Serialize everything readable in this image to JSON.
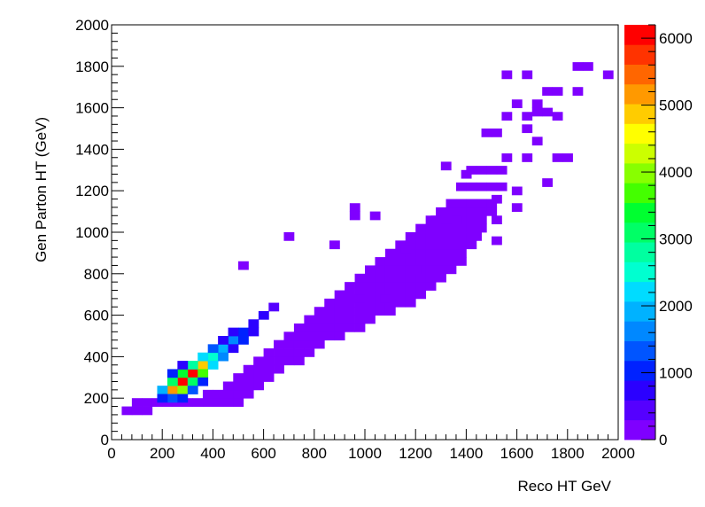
{
  "chart_data": {
    "type": "heatmap",
    "title": "",
    "xlabel": "Reco HT GeV",
    "ylabel": "Gen Parton HT (GeV)",
    "xlim": [
      0,
      2000
    ],
    "ylim": [
      0,
      2000
    ],
    "bin_width": 40,
    "x_ticks": [
      "0",
      "200",
      "400",
      "600",
      "800",
      "1000",
      "1200",
      "1400",
      "1600",
      "1800",
      "2000"
    ],
    "y_ticks": [
      "0",
      "200",
      "400",
      "600",
      "800",
      "1000",
      "1200",
      "1400",
      "1600",
      "1800",
      "2000"
    ],
    "z_range": [
      0,
      6200
    ],
    "z_ticks": [
      "0",
      "1000",
      "2000",
      "3000",
      "4000",
      "5000",
      "6000"
    ],
    "palette": [
      "#7f00ff",
      "#5500ff",
      "#2b00ff",
      "#0022ff",
      "#0055ff",
      "#0088ff",
      "#00b2ff",
      "#00dcff",
      "#00ffd0",
      "#00ffa0",
      "#00ff66",
      "#00ff30",
      "#44ff00",
      "#88ff00",
      "#ccff00",
      "#ffff00",
      "#ffcc00",
      "#ff9900",
      "#ff6600",
      "#ff3300",
      "#ff0000"
    ],
    "hotspots": [
      {
        "x": 220,
        "y": 220,
        "value": 5100
      },
      {
        "x": 260,
        "y": 260,
        "value": 6100
      },
      {
        "x": 300,
        "y": 300,
        "value": 6000
      },
      {
        "x": 340,
        "y": 340,
        "value": 4800
      },
      {
        "x": 260,
        "y": 220,
        "value": 4000
      },
      {
        "x": 220,
        "y": 260,
        "value": 3200
      },
      {
        "x": 300,
        "y": 260,
        "value": 3000
      },
      {
        "x": 260,
        "y": 300,
        "value": 3500
      },
      {
        "x": 340,
        "y": 300,
        "value": 3700
      },
      {
        "x": 300,
        "y": 340,
        "value": 2800
      },
      {
        "x": 380,
        "y": 380,
        "value": 2600
      },
      {
        "x": 340,
        "y": 380,
        "value": 2200
      },
      {
        "x": 380,
        "y": 340,
        "value": 2300
      },
      {
        "x": 420,
        "y": 420,
        "value": 1900
      },
      {
        "x": 460,
        "y": 460,
        "value": 1500
      },
      {
        "x": 420,
        "y": 380,
        "value": 1600
      },
      {
        "x": 380,
        "y": 420,
        "value": 1400
      },
      {
        "x": 180,
        "y": 220,
        "value": 1800
      },
      {
        "x": 220,
        "y": 180,
        "value": 1200
      },
      {
        "x": 180,
        "y": 180,
        "value": 900
      },
      {
        "x": 260,
        "y": 180,
        "value": 1000
      },
      {
        "x": 300,
        "y": 220,
        "value": 1300
      },
      {
        "x": 220,
        "y": 300,
        "value": 900
      },
      {
        "x": 500,
        "y": 500,
        "value": 1100
      },
      {
        "x": 540,
        "y": 540,
        "value": 800
      },
      {
        "x": 500,
        "y": 460,
        "value": 900
      },
      {
        "x": 460,
        "y": 500,
        "value": 700
      },
      {
        "x": 580,
        "y": 580,
        "value": 600
      },
      {
        "x": 620,
        "y": 620,
        "value": 450
      },
      {
        "x": 540,
        "y": 500,
        "value": 600
      },
      {
        "x": 460,
        "y": 420,
        "value": 800
      },
      {
        "x": 420,
        "y": 460,
        "value": 600
      },
      {
        "x": 340,
        "y": 260,
        "value": 1000
      },
      {
        "x": 260,
        "y": 340,
        "value": 800
      }
    ],
    "outliers": [
      [
        1540,
        1740
      ],
      [
        1620,
        1740
      ],
      [
        1820,
        1780
      ],
      [
        1860,
        1780
      ],
      [
        1940,
        1740
      ],
      [
        1700,
        1660
      ],
      [
        1740,
        1660
      ],
      [
        1820,
        1660
      ],
      [
        1580,
        1600
      ],
      [
        1660,
        1600
      ],
      [
        1540,
        1540
      ],
      [
        1620,
        1540
      ],
      [
        1660,
        1560
      ],
      [
        1700,
        1560
      ],
      [
        1740,
        1540
      ],
      [
        1620,
        1480
      ],
      [
        1460,
        1460
      ],
      [
        1500,
        1460
      ],
      [
        1660,
        1420
      ],
      [
        1540,
        1340
      ],
      [
        1620,
        1340
      ],
      [
        1740,
        1340
      ],
      [
        1780,
        1340
      ],
      [
        1300,
        1300
      ],
      [
        1380,
        1260
      ],
      [
        1700,
        1220
      ],
      [
        1500,
        1140
      ],
      [
        1580,
        1180
      ],
      [
        1580,
        1100
      ],
      [
        940,
        1100
      ],
      [
        940,
        1060
      ],
      [
        1020,
        1060
      ],
      [
        1260,
        1040
      ],
      [
        1340,
        1040
      ],
      [
        1500,
        1040
      ],
      [
        680,
        960
      ],
      [
        1300,
        1000
      ],
      [
        1420,
        960
      ],
      [
        1500,
        940
      ],
      [
        860,
        920
      ],
      [
        1140,
        900
      ],
      [
        500,
        820
      ],
      [
        1180,
        800
      ],
      [
        960,
        660
      ],
      [
        1060,
        660
      ]
    ],
    "band": [
      [
        120,
        40,
        120,
        1
      ],
      [
        160,
        80,
        160,
        1
      ],
      [
        160,
        120,
        240,
        1
      ],
      [
        160,
        160,
        280,
        1
      ],
      [
        160,
        200,
        320,
        1
      ],
      [
        160,
        240,
        400,
        1
      ],
      [
        160,
        280,
        440,
        1
      ],
      [
        160,
        320,
        480,
        1
      ],
      [
        200,
        360,
        480,
        1
      ],
      [
        200,
        400,
        520,
        1
      ],
      [
        240,
        440,
        560,
        1
      ],
      [
        280,
        480,
        600,
        1
      ],
      [
        320,
        520,
        640,
        1
      ],
      [
        360,
        560,
        720,
        1
      ],
      [
        400,
        600,
        760,
        1
      ],
      [
        440,
        640,
        800,
        1
      ],
      [
        480,
        680,
        880,
        1
      ],
      [
        520,
        720,
        960,
        1
      ],
      [
        560,
        760,
        1000,
        1
      ],
      [
        600,
        800,
        1080,
        1
      ],
      [
        640,
        840,
        1160,
        1
      ],
      [
        680,
        880,
        1200,
        1
      ],
      [
        720,
        920,
        1240,
        1
      ],
      [
        760,
        960,
        1280,
        1
      ],
      [
        800,
        1000,
        1320,
        1
      ],
      [
        840,
        1040,
        1360,
        1
      ],
      [
        880,
        1080,
        1360,
        1
      ],
      [
        920,
        1120,
        1400,
        1
      ],
      [
        960,
        1160,
        1400,
        1
      ],
      [
        1000,
        1200,
        1440,
        1
      ],
      [
        1040,
        1240,
        1440,
        1
      ],
      [
        1080,
        1280,
        1480,
        1
      ],
      [
        1120,
        1320,
        1480,
        1
      ],
      [
        1200,
        1360,
        1520,
        1
      ],
      [
        1280,
        1400,
        1520,
        1
      ]
    ]
  }
}
